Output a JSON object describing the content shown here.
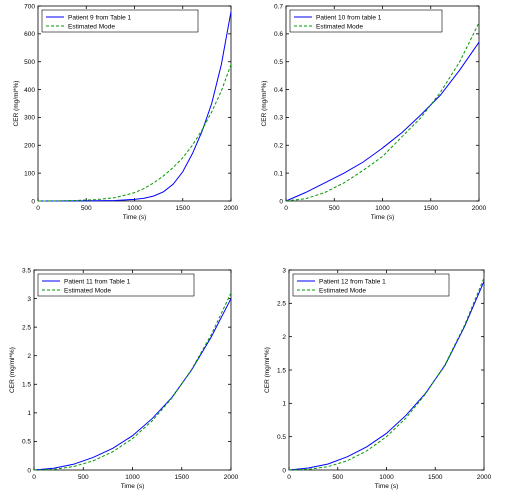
{
  "chart_data": [
    {
      "type": "line",
      "xlabel": "Time (s)",
      "ylabel": "CER (mg/ml*%)",
      "xlim": [
        0,
        2000
      ],
      "ylim": [
        0,
        700
      ],
      "xticks": [
        0,
        500,
        1000,
        1500,
        2000
      ],
      "yticks": [
        0,
        100,
        200,
        300,
        400,
        500,
        600,
        700
      ],
      "legend": "top-left",
      "grid": false,
      "series": [
        {
          "name": "Patient 9 from Table 1",
          "color": "#0000ff",
          "style": "solid",
          "x": [
            0,
            200,
            400,
            600,
            800,
            1000,
            1100,
            1200,
            1300,
            1400,
            1500,
            1600,
            1700,
            1800,
            1900,
            2000
          ],
          "y": [
            0,
            0.1,
            0.3,
            0.8,
            2,
            6,
            10,
            18,
            33,
            60,
            105,
            170,
            250,
            350,
            490,
            680
          ]
        },
        {
          "name": "Estimated Mode",
          "color": "#009900",
          "style": "dashed",
          "x": [
            0,
            200,
            400,
            600,
            800,
            1000,
            1100,
            1200,
            1300,
            1400,
            1500,
            1600,
            1700,
            1800,
            1900,
            2000
          ],
          "y": [
            0,
            0.5,
            2,
            5,
            12,
            30,
            45,
            65,
            90,
            120,
            155,
            200,
            255,
            320,
            395,
            490
          ]
        }
      ]
    },
    {
      "type": "line",
      "xlabel": "Time (s)",
      "ylabel": "CER (mg/ml*%)",
      "xlim": [
        0,
        2000
      ],
      "ylim": [
        0,
        0.7
      ],
      "xticks": [
        0,
        500,
        1000,
        1500,
        2000
      ],
      "yticks": [
        0,
        0.1,
        0.2,
        0.3,
        0.4,
        0.5,
        0.6,
        0.7
      ],
      "legend": "top-left",
      "grid": false,
      "series": [
        {
          "name": "Patient 10 from table 1",
          "color": "#0000ff",
          "style": "solid",
          "x": [
            0,
            200,
            400,
            600,
            800,
            1000,
            1200,
            1400,
            1600,
            1800,
            2000
          ],
          "y": [
            0,
            0.03,
            0.065,
            0.1,
            0.14,
            0.19,
            0.245,
            0.31,
            0.38,
            0.47,
            0.57
          ]
        },
        {
          "name": "Estimated Mode",
          "color": "#009900",
          "style": "dashed",
          "x": [
            0,
            200,
            400,
            600,
            800,
            1000,
            1200,
            1400,
            1600,
            1800,
            2000
          ],
          "y": [
            0,
            0.008,
            0.03,
            0.065,
            0.11,
            0.16,
            0.23,
            0.3,
            0.39,
            0.5,
            0.64
          ]
        }
      ]
    },
    {
      "type": "line",
      "xlabel": "Time (s)",
      "ylabel": "CER (mg/ml*%)",
      "xlim": [
        0,
        2000
      ],
      "ylim": [
        0,
        3.5
      ],
      "xticks": [
        0,
        500,
        1000,
        1500,
        2000
      ],
      "yticks": [
        0,
        0.5,
        1,
        1.5,
        2,
        2.5,
        3,
        3.5
      ],
      "legend": "top-left",
      "grid": false,
      "series": [
        {
          "name": "Patient 11 from Table 1",
          "color": "#0000ff",
          "style": "solid",
          "x": [
            0,
            200,
            400,
            600,
            800,
            1000,
            1200,
            1400,
            1600,
            1800,
            2000
          ],
          "y": [
            0,
            0.03,
            0.1,
            0.22,
            0.38,
            0.6,
            0.9,
            1.27,
            1.75,
            2.33,
            3.0
          ]
        },
        {
          "name": "Estimated Mode",
          "color": "#009900",
          "style": "dashed",
          "x": [
            0,
            200,
            400,
            600,
            800,
            1000,
            1200,
            1400,
            1600,
            1800,
            2000
          ],
          "y": [
            0,
            0.01,
            0.06,
            0.16,
            0.32,
            0.55,
            0.86,
            1.26,
            1.76,
            2.37,
            3.1
          ]
        }
      ]
    },
    {
      "type": "line",
      "xlabel": "Time (s)",
      "ylabel": "CER (mg/ml*%)",
      "xlim": [
        0,
        2000
      ],
      "ylim": [
        0,
        3
      ],
      "xticks": [
        0,
        500,
        1000,
        1500,
        2000
      ],
      "yticks": [
        0,
        0.5,
        1,
        1.5,
        2,
        2.5,
        3
      ],
      "legend": "top-left",
      "grid": false,
      "series": [
        {
          "name": "Patient 12 from Table 1",
          "color": "#0000ff",
          "style": "solid",
          "x": [
            0,
            200,
            400,
            600,
            800,
            1000,
            1200,
            1400,
            1600,
            1800,
            2000
          ],
          "y": [
            0,
            0.03,
            0.09,
            0.2,
            0.35,
            0.55,
            0.82,
            1.15,
            1.57,
            2.15,
            2.83
          ]
        },
        {
          "name": "Estimated Mode",
          "color": "#009900",
          "style": "dashed",
          "x": [
            0,
            200,
            400,
            600,
            800,
            1000,
            1200,
            1400,
            1600,
            1800,
            2000
          ],
          "y": [
            0,
            0.01,
            0.05,
            0.14,
            0.29,
            0.5,
            0.78,
            1.14,
            1.58,
            2.17,
            2.88
          ]
        }
      ]
    }
  ]
}
